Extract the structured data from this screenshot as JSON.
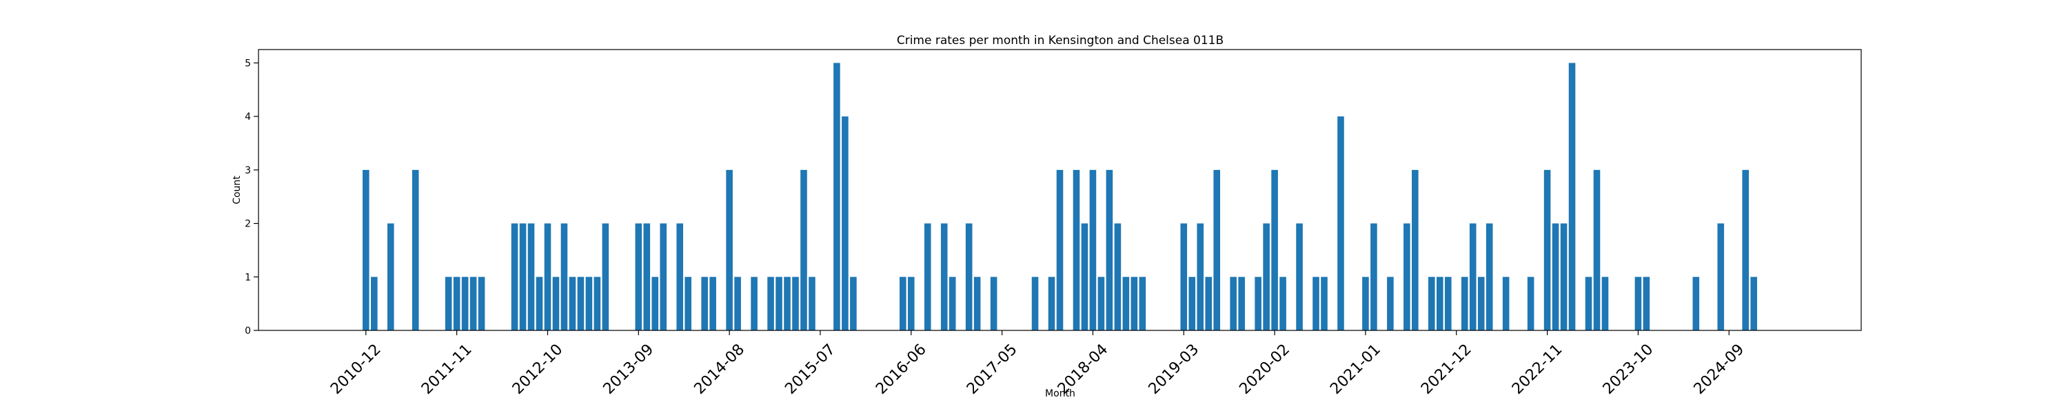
{
  "chart_data": {
    "type": "bar",
    "title": "Crime rates per month in Kensington and Chelsea 011B",
    "xlabel": "Month",
    "ylabel": "Count",
    "ylim": [
      0,
      5.25
    ],
    "yticks": [
      0,
      1,
      2,
      3,
      4,
      5
    ],
    "xticks": [
      "2010-12",
      "2011-11",
      "2012-10",
      "2013-09",
      "2014-08",
      "2015-07",
      "2016-06",
      "2017-05",
      "2018-04",
      "2019-03",
      "2020-02",
      "2021-01",
      "2021-12",
      "2022-11",
      "2023-10",
      "2024-09"
    ],
    "grid": false,
    "color": "#1f77b4",
    "months": [
      "2010-12",
      "2011-01",
      "2011-03",
      "2011-06",
      "2011-10",
      "2011-11",
      "2011-12",
      "2012-01",
      "2012-02",
      "2012-06",
      "2012-07",
      "2012-08",
      "2012-09",
      "2012-10",
      "2012-11",
      "2012-12",
      "2013-01",
      "2013-02",
      "2013-03",
      "2013-04",
      "2013-05",
      "2013-09",
      "2013-10",
      "2013-11",
      "2013-12",
      "2014-02",
      "2014-03",
      "2014-05",
      "2014-06",
      "2014-08",
      "2014-09",
      "2014-11",
      "2015-01",
      "2015-02",
      "2015-03",
      "2015-04",
      "2015-05",
      "2015-06",
      "2015-09",
      "2015-10",
      "2015-11",
      "2016-05",
      "2016-06",
      "2016-08",
      "2016-10",
      "2016-11",
      "2017-01",
      "2017-02",
      "2017-04",
      "2017-09",
      "2017-11",
      "2017-12",
      "2018-02",
      "2018-03",
      "2018-04",
      "2018-05",
      "2018-06",
      "2018-07",
      "2018-08",
      "2018-09",
      "2018-10",
      "2019-03",
      "2019-04",
      "2019-05",
      "2019-06",
      "2019-07",
      "2019-09",
      "2019-10",
      "2019-12",
      "2020-01",
      "2020-02",
      "2020-03",
      "2020-05",
      "2020-07",
      "2020-08",
      "2020-10",
      "2021-01",
      "2021-02",
      "2021-04",
      "2021-06",
      "2021-07",
      "2021-09",
      "2021-10",
      "2021-11",
      "2022-01",
      "2022-02",
      "2022-03",
      "2022-04",
      "2022-06",
      "2022-09",
      "2022-11",
      "2022-12",
      "2023-01",
      "2023-02",
      "2023-04",
      "2023-05",
      "2023-06",
      "2023-10",
      "2023-11",
      "2024-05",
      "2024-08",
      "2024-11",
      "2024-12"
    ],
    "values": [
      3,
      1,
      2,
      3,
      1,
      1,
      1,
      1,
      1,
      2,
      2,
      2,
      1,
      2,
      1,
      2,
      1,
      1,
      1,
      1,
      2,
      2,
      2,
      1,
      2,
      2,
      1,
      1,
      1,
      3,
      1,
      1,
      1,
      1,
      1,
      1,
      3,
      1,
      5,
      4,
      1,
      1,
      1,
      2,
      2,
      1,
      2,
      1,
      1,
      1,
      1,
      3,
      3,
      2,
      3,
      1,
      3,
      2,
      1,
      1,
      1,
      2,
      1,
      2,
      1,
      3,
      1,
      1,
      1,
      2,
      3,
      1,
      2,
      1,
      1,
      4,
      1,
      2,
      1,
      2,
      3,
      1,
      1,
      1,
      1,
      2,
      1,
      2,
      1,
      1,
      3,
      2,
      2,
      5,
      1,
      3,
      1,
      1,
      1,
      1,
      2,
      3,
      1
    ]
  }
}
